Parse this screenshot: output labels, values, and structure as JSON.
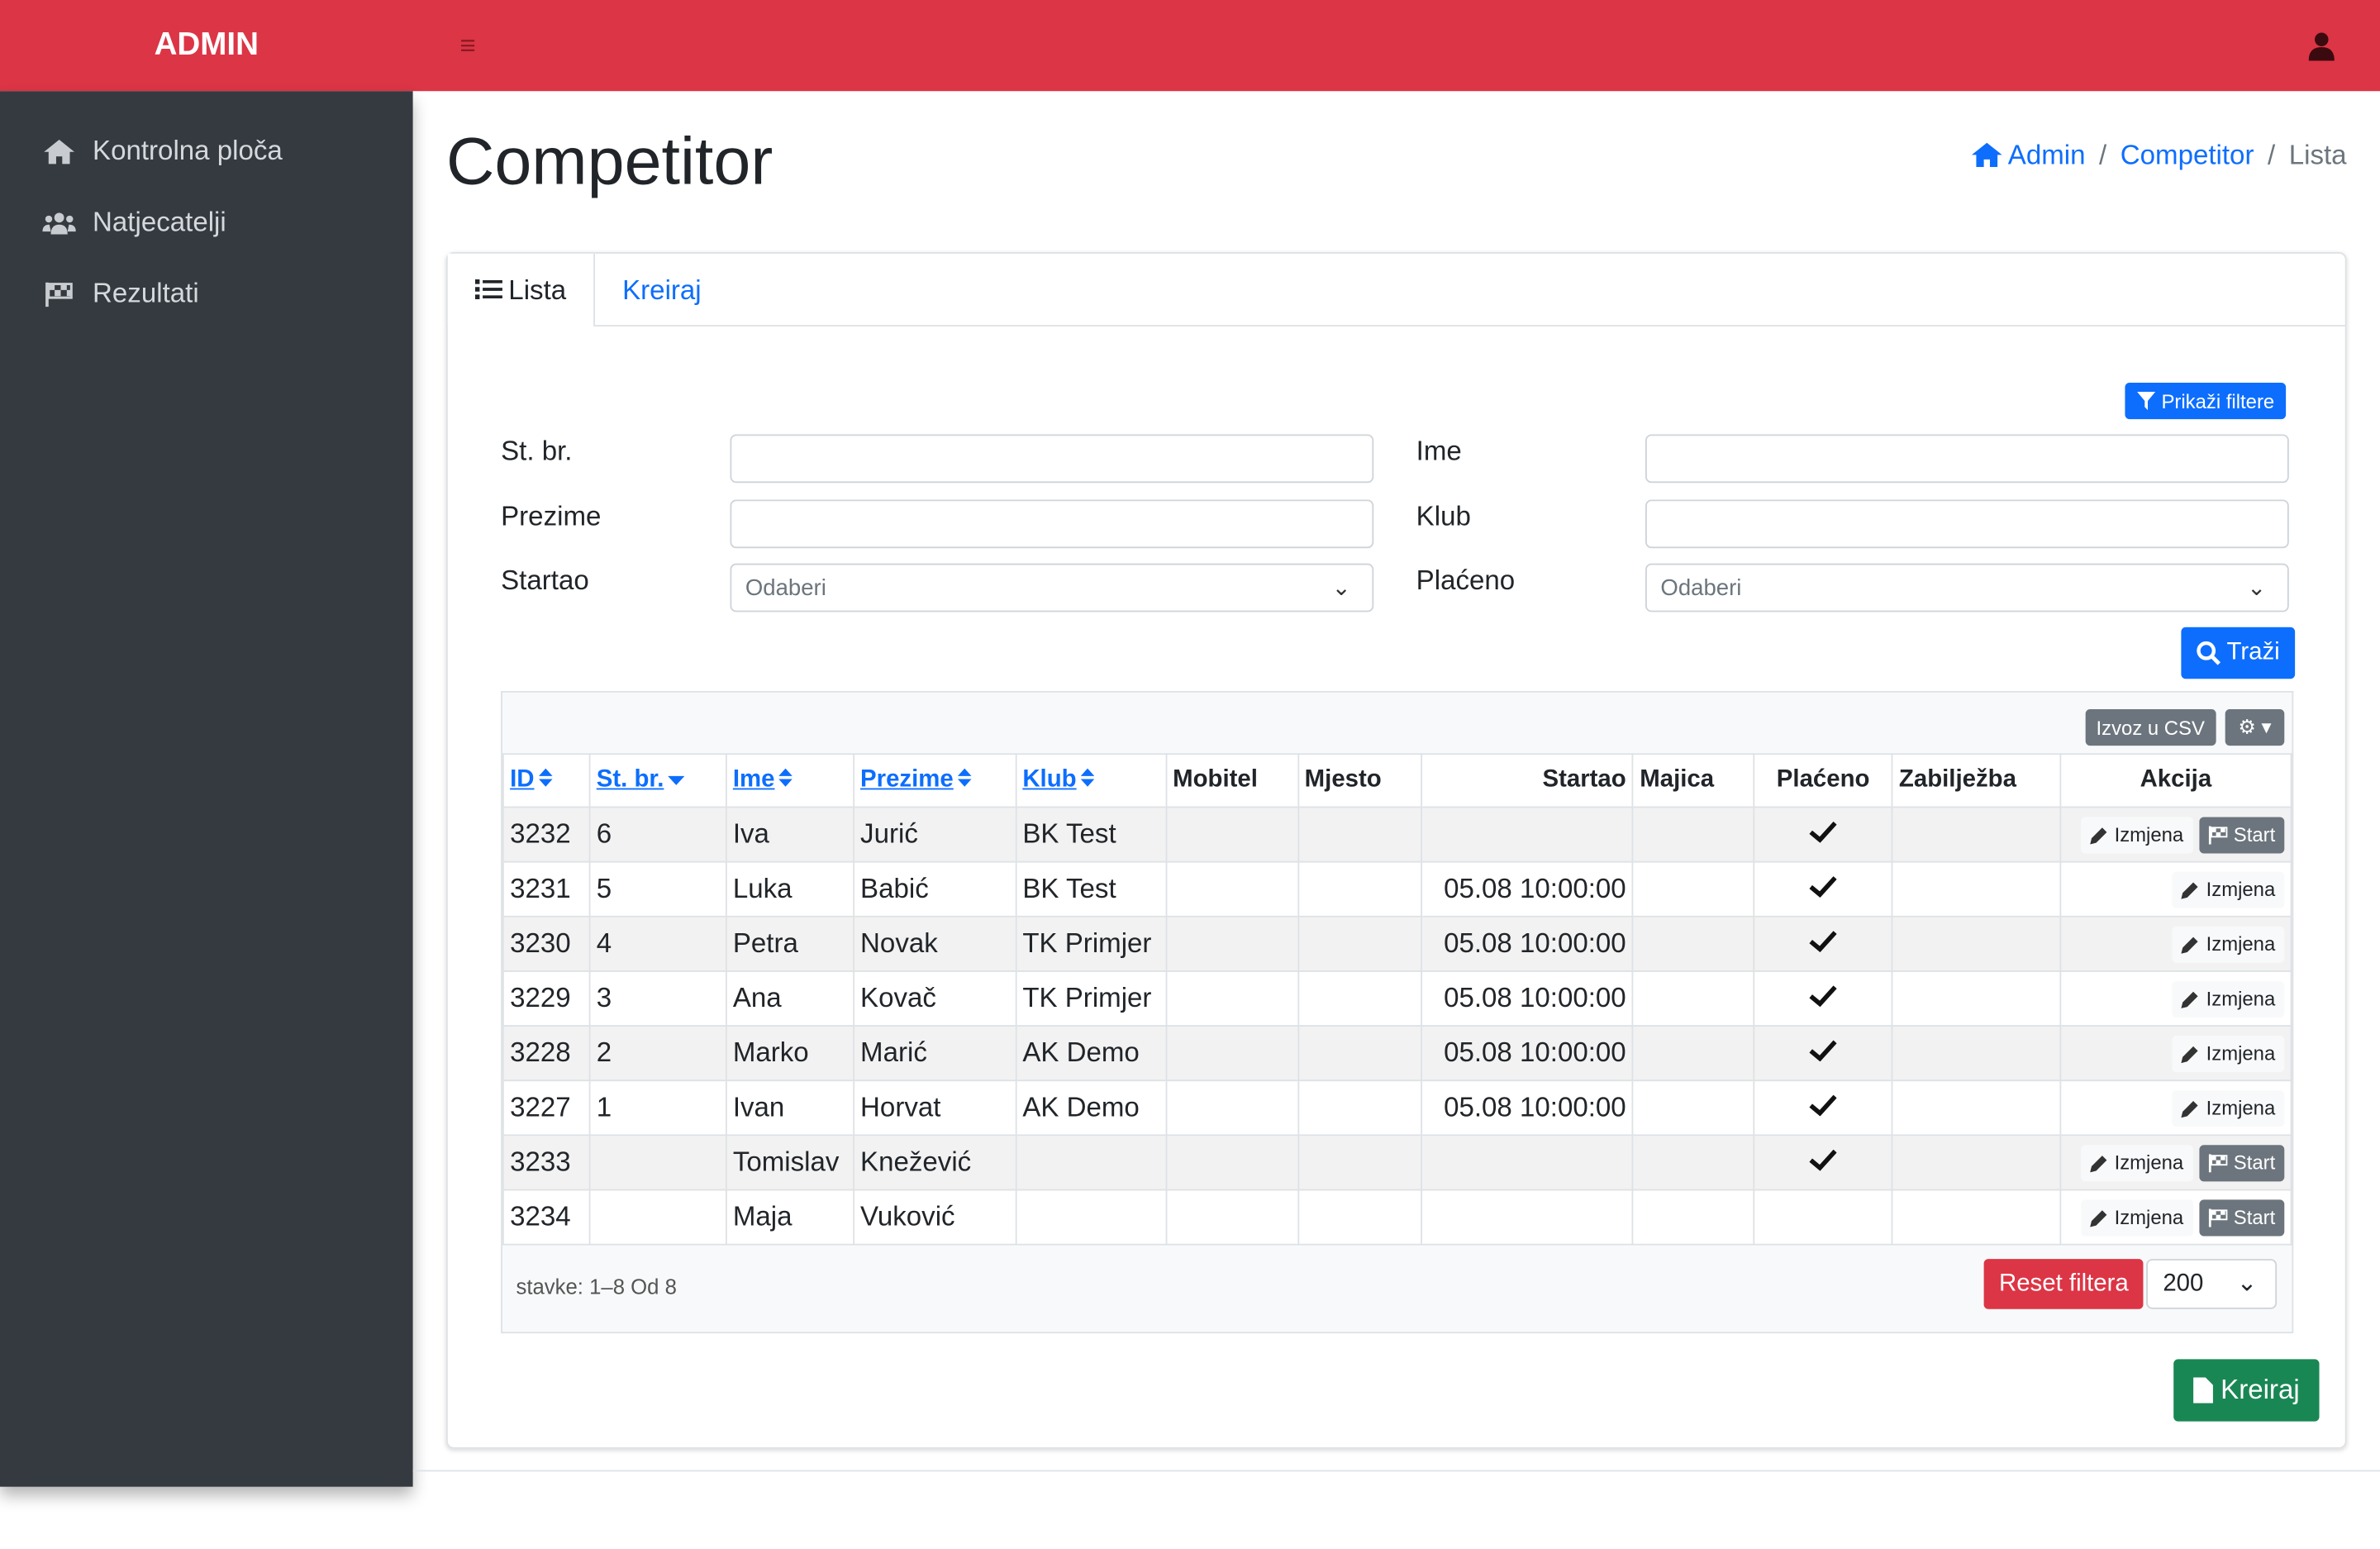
{
  "sidebar": {
    "brand": "ADMIN",
    "menu": [
      "Kontrolna ploča",
      "Natjecatelji",
      "Rezultati"
    ]
  },
  "page": {
    "title": "Competitor",
    "breadcrumb": [
      "Admin",
      "Competitor",
      "Lista"
    ]
  },
  "tabs": [
    "Lista",
    "Kreiraj"
  ],
  "filters": {
    "toggle": "Prikaži filtere",
    "fields": [
      {
        "label": "St. br.",
        "kind": "text"
      },
      {
        "label": "Ime",
        "kind": "text"
      },
      {
        "label": "Prezime",
        "kind": "text"
      },
      {
        "label": "Klub",
        "kind": "text"
      },
      {
        "label": "Startao",
        "kind": "select",
        "placeholder": "Odaberi"
      },
      {
        "label": "Plaćeno",
        "kind": "select",
        "placeholder": "Odaberi"
      }
    ],
    "search": "Traži"
  },
  "table": {
    "export": "Izvoz u CSV",
    "headers": [
      {
        "label": "ID",
        "key": "id",
        "sort": "both"
      },
      {
        "label": "St. br.",
        "key": "no",
        "sort": "desc"
      },
      {
        "label": "Ime",
        "key": "first",
        "sort": "both"
      },
      {
        "label": "Prezime",
        "key": "last",
        "sort": "both"
      },
      {
        "label": "Klub",
        "key": "club",
        "sort": "both"
      },
      {
        "label": "Mobitel",
        "key": "phone"
      },
      {
        "label": "Mjesto",
        "key": "place"
      },
      {
        "label": "Startao",
        "key": "started"
      },
      {
        "label": "Majica",
        "key": "shirt"
      },
      {
        "label": "Plaćeno",
        "key": "paid"
      },
      {
        "label": "Zabilježba",
        "key": "note"
      },
      {
        "label": "Akcija",
        "key": "actions"
      }
    ],
    "rows": [
      {
        "id": 3232,
        "no": 6,
        "first": "Iva",
        "last": "Jurić",
        "club": "BK Test",
        "paid": true,
        "actions": [
          "Izmjena",
          "Start"
        ]
      },
      {
        "id": 3231,
        "no": 5,
        "first": "Luka",
        "last": "Babić",
        "club": "BK Test",
        "started": "05.08 10:00:00",
        "paid": true,
        "actions": [
          "Izmjena"
        ]
      },
      {
        "id": 3230,
        "no": 4,
        "first": "Petra",
        "last": "Novak",
        "club": "TK Primjer",
        "started": "05.08 10:00:00",
        "paid": true,
        "actions": [
          "Izmjena"
        ]
      },
      {
        "id": 3229,
        "no": 3,
        "first": "Ana",
        "last": "Kovač",
        "club": "TK Primjer",
        "started": "05.08 10:00:00",
        "paid": true,
        "actions": [
          "Izmjena"
        ]
      },
      {
        "id": 3228,
        "no": 2,
        "first": "Marko",
        "last": "Marić",
        "club": "AK Demo",
        "started": "05.08 10:00:00",
        "paid": true,
        "actions": [
          "Izmjena"
        ]
      },
      {
        "id": 3227,
        "no": 1,
        "first": "Ivan",
        "last": "Horvat",
        "club": "AK Demo",
        "started": "05.08 10:00:00",
        "paid": true,
        "actions": [
          "Izmjena"
        ]
      },
      {
        "id": 3233,
        "first": "Tomislav",
        "last": "Knežević",
        "paid": true,
        "actions": [
          "Izmjena",
          "Start"
        ]
      },
      {
        "id": 3234,
        "first": "Maja",
        "last": "Vuković",
        "actions": [
          "Izmjena",
          "Start"
        ]
      }
    ],
    "summary": "stavke: 1–8 Od 8",
    "reset": "Reset filtera",
    "page_size": 200
  },
  "create": "Kreiraj"
}
